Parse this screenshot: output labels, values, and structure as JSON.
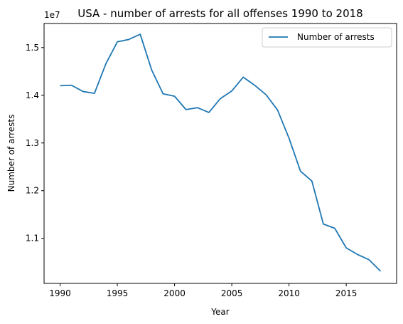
{
  "chart_data": {
    "type": "line",
    "title": "USA - number of arrests for all offenses 1990 to 2018",
    "xlabel": "Year",
    "ylabel": "Number of arrests",
    "y_offset_label": "1e7",
    "xlim": [
      1988.6,
      2019.4
    ],
    "ylim": [
      1.0055,
      1.5505
    ],
    "x_ticks": [
      1990,
      1995,
      2000,
      2005,
      2010,
      2015
    ],
    "y_ticks": [
      1.1,
      1.2,
      1.3,
      1.4,
      1.5
    ],
    "y_tick_labels": [
      "1.1",
      "1.2",
      "1.3",
      "1.4",
      "1.5"
    ],
    "legend": "top-right",
    "grid": false,
    "series_color": "#1f77b4",
    "series": [
      {
        "name": "Number of arrests",
        "x": [
          1990,
          1991,
          1992,
          1993,
          1994,
          1995,
          1996,
          1997,
          1998,
          1999,
          2000,
          2001,
          2002,
          2003,
          2004,
          2005,
          2006,
          2007,
          2008,
          2009,
          2010,
          2011,
          2012,
          2013,
          2014,
          2015,
          2016,
          2017,
          2018
        ],
        "y": [
          1.42,
          1.421,
          1.408,
          1.404,
          1.466,
          1.512,
          1.517,
          1.528,
          1.453,
          1.403,
          1.398,
          1.37,
          1.374,
          1.364,
          1.393,
          1.409,
          1.438,
          1.421,
          1.401,
          1.369,
          1.31,
          1.241,
          1.22,
          1.13,
          1.121,
          1.08,
          1.066,
          1.055,
          1.031
        ]
      }
    ]
  }
}
